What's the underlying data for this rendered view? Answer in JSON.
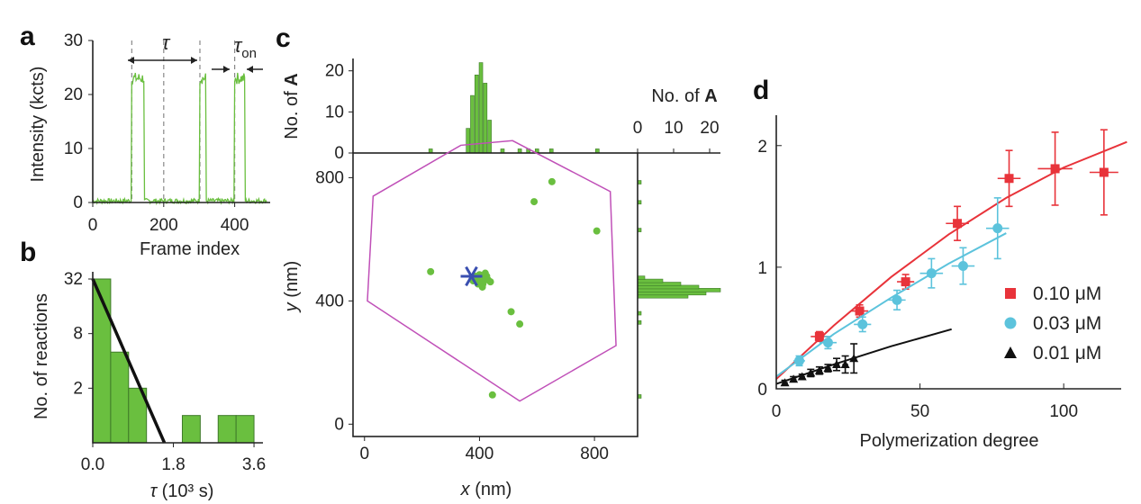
{
  "panels": {
    "a": {
      "label": "a",
      "xlabel": "Frame index",
      "ylabel": "Intensity (kcts)",
      "xticks": [
        "0",
        "200",
        "400"
      ],
      "yticks": [
        "0",
        "10",
        "20",
        "30"
      ],
      "tau": "τ",
      "tau_on_sym": "τ",
      "tau_on_sub": "on"
    },
    "b": {
      "label": "b",
      "xlabel_sym": "τ",
      "xlabel_rest": " (10³ s)",
      "ylabel": "No. of reactions",
      "xticks": [
        "0.0",
        "1.8",
        "3.6"
      ],
      "yticks": [
        "2",
        "8",
        "32"
      ]
    },
    "c": {
      "label": "c",
      "xlabel_sym": "x",
      "xlabel_unit": " (nm)",
      "ylabel_sym": "y",
      "ylabel_unit": " (nm)",
      "xticks": [
        "0",
        "400",
        "800"
      ],
      "yticks": [
        "0",
        "400",
        "800"
      ],
      "top_hist_ylabel_pre": "No. of ",
      "top_hist_ylabel_bold": "A",
      "top_hist_yticks": [
        "0",
        "10",
        "20"
      ],
      "right_hist_xlabel_pre": "No. of ",
      "right_hist_xlabel_bold": "A",
      "right_hist_xticks": [
        "0",
        "10",
        "20"
      ]
    },
    "d": {
      "label": "d",
      "xlabel": "Polymerization degree",
      "xticks": [
        "0",
        "50",
        "100"
      ],
      "yticks": [
        "0",
        "1",
        "2"
      ]
    }
  },
  "colors": {
    "green": "#6abf3f",
    "green_dark": "#3f8a2a",
    "magenta": "#c050b8",
    "blue_star": "#3a4fb0",
    "red": "#e8333a",
    "cyan": "#5cc3dc",
    "black": "#111111"
  },
  "chart_data": [
    {
      "panel": "a",
      "type": "line",
      "xlim": [
        0,
        500
      ],
      "ylim": [
        0,
        30
      ],
      "baseline": 0.3,
      "on_level": 23,
      "bursts": [
        [
          110,
          145
        ],
        [
          302,
          318
        ],
        [
          400,
          428
        ]
      ],
      "dashed_markers": [
        110,
        200,
        302,
        400
      ]
    },
    {
      "panel": "b",
      "type": "bar",
      "scale": "log2",
      "bin_edges": [
        0.0,
        0.4,
        0.8,
        1.2,
        1.6,
        2.0,
        2.4,
        2.8,
        3.2,
        3.6
      ],
      "counts": [
        32,
        5,
        2,
        0,
        0,
        1,
        0,
        1,
        1
      ],
      "fit_line": [
        [
          0.0,
          32
        ],
        [
          1.6,
          0.5
        ]
      ]
    },
    {
      "panel": "c",
      "type": "scatter",
      "xlim": [
        -40,
        950
      ],
      "ylim": [
        -40,
        880
      ],
      "points": [
        {
          "x": 230,
          "y": 495
        },
        {
          "x": 652,
          "y": 787
        },
        {
          "x": 590,
          "y": 722
        },
        {
          "x": 808,
          "y": 627
        },
        {
          "x": 510,
          "y": 365
        },
        {
          "x": 540,
          "y": 325
        },
        {
          "x": 445,
          "y": 95
        },
        {
          "x": 378,
          "y": 465
        },
        {
          "x": 392,
          "y": 470
        },
        {
          "x": 405,
          "y": 462
        },
        {
          "x": 418,
          "y": 475
        },
        {
          "x": 430,
          "y": 468
        },
        {
          "x": 385,
          "y": 480
        },
        {
          "x": 400,
          "y": 485
        },
        {
          "x": 412,
          "y": 455
        },
        {
          "x": 425,
          "y": 480
        },
        {
          "x": 438,
          "y": 462
        },
        {
          "x": 395,
          "y": 455
        },
        {
          "x": 420,
          "y": 490
        },
        {
          "x": 410,
          "y": 445
        }
      ],
      "center_star": {
        "x": 372,
        "y": 480
      },
      "boundary_polygon": [
        [
          30,
          740
        ],
        [
          335,
          905
        ],
        [
          515,
          920
        ],
        [
          855,
          755
        ],
        [
          875,
          255
        ],
        [
          540,
          75
        ],
        [
          10,
          400
        ]
      ],
      "top_histogram": {
        "bin_centers": [
          230,
          360,
          375,
          390,
          405,
          420,
          435,
          480,
          540,
          570,
          600,
          650,
          810
        ],
        "counts": [
          1,
          6,
          14,
          19,
          22,
          17,
          8,
          1,
          1,
          1,
          1,
          1,
          1
        ]
      },
      "right_histogram": {
        "bin_centers": [
          90,
          330,
          360,
          415,
          425,
          435,
          445,
          455,
          465,
          475,
          630,
          720,
          785
        ],
        "counts": [
          1,
          1,
          1,
          14,
          19,
          23,
          17,
          12,
          7,
          2,
          1,
          1,
          1
        ]
      }
    },
    {
      "panel": "d",
      "type": "scatter",
      "xlim": [
        0,
        120
      ],
      "ylim": [
        0,
        2.25
      ],
      "series": [
        {
          "name": "0.10 μM",
          "marker": "square",
          "color": "#e8333a",
          "points": [
            [
              15,
              0.43,
              3,
              0.04
            ],
            [
              29,
              0.64,
              3,
              0.05
            ],
            [
              45,
              0.88,
              3,
              0.06
            ],
            [
              63,
              1.36,
              4,
              0.14
            ],
            [
              81,
              1.73,
              4,
              0.23
            ],
            [
              97,
              1.81,
              6,
              0.3
            ],
            [
              114,
              1.78,
              5,
              0.35
            ]
          ],
          "fit": [
            [
              0,
              0.08
            ],
            [
              20,
              0.52
            ],
            [
              40,
              0.92
            ],
            [
              60,
              1.27
            ],
            [
              80,
              1.57
            ],
            [
              100,
              1.82
            ],
            [
              122,
              2.03
            ]
          ]
        },
        {
          "name": "0.03 μM",
          "marker": "circle",
          "color": "#5cc3dc",
          "points": [
            [
              8,
              0.23,
              2,
              0.04
            ],
            [
              18,
              0.38,
              3,
              0.05
            ],
            [
              30,
              0.53,
              3,
              0.06
            ],
            [
              42,
              0.73,
              3,
              0.08
            ],
            [
              54,
              0.95,
              4,
              0.12
            ],
            [
              65,
              1.01,
              4,
              0.15
            ],
            [
              77,
              1.32,
              4,
              0.25
            ]
          ],
          "fit": [
            [
              0,
              0.1
            ],
            [
              20,
              0.45
            ],
            [
              40,
              0.75
            ],
            [
              60,
              1.03
            ],
            [
              80,
              1.28
            ]
          ]
        },
        {
          "name": "0.01 μM",
          "marker": "triangle",
          "color": "#111111",
          "points": [
            [
              3,
              0.05,
              1,
              0.02
            ],
            [
              6,
              0.08,
              1,
              0.02
            ],
            [
              9,
              0.1,
              1,
              0.02
            ],
            [
              12,
              0.13,
              1,
              0.03
            ],
            [
              15,
              0.15,
              1,
              0.03
            ],
            [
              18,
              0.17,
              1,
              0.03
            ],
            [
              21,
              0.2,
              1,
              0.05
            ],
            [
              24,
              0.2,
              1,
              0.07
            ],
            [
              27,
              0.25,
              1,
              0.12
            ]
          ],
          "fit": [
            [
              0,
              0.04
            ],
            [
              20,
              0.2
            ],
            [
              40,
              0.35
            ],
            [
              61,
              0.49
            ]
          ]
        }
      ]
    }
  ]
}
